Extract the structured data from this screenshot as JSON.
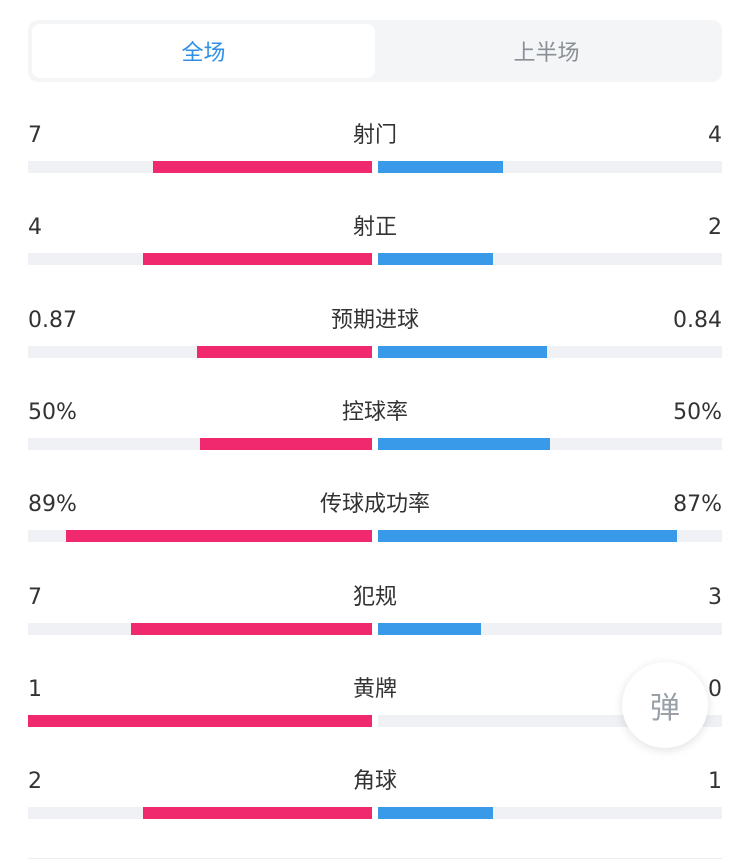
{
  "tabs": [
    {
      "label": "全场",
      "active": true
    },
    {
      "label": "上半场",
      "active": false
    }
  ],
  "stats": [
    {
      "label": "射门",
      "home": "7",
      "away": "4",
      "home_value": 7,
      "away_value": 4
    },
    {
      "label": "射正",
      "home": "4",
      "away": "2",
      "home_value": 4,
      "away_value": 2
    },
    {
      "label": "预期进球",
      "home": "0.87",
      "away": "0.84",
      "home_value": 0.87,
      "away_value": 0.84
    },
    {
      "label": "控球率",
      "home": "50%",
      "away": "50%",
      "home_value": 50,
      "away_value": 50
    },
    {
      "label": "传球成功率",
      "home": "89%",
      "away": "87%",
      "home_value": 89,
      "away_value": 87
    },
    {
      "label": "犯规",
      "home": "7",
      "away": "3",
      "home_value": 7,
      "away_value": 3
    },
    {
      "label": "黄牌",
      "home": "1",
      "away": "0",
      "home_value": 1,
      "away_value": 0
    },
    {
      "label": "角球",
      "home": "2",
      "away": "1",
      "home_value": 2,
      "away_value": 1
    }
  ],
  "danmu_button": {
    "label": "弹"
  },
  "colors": {
    "home": "#f0286e",
    "away": "#3a9aea",
    "accent": "#2f8fe6"
  }
}
